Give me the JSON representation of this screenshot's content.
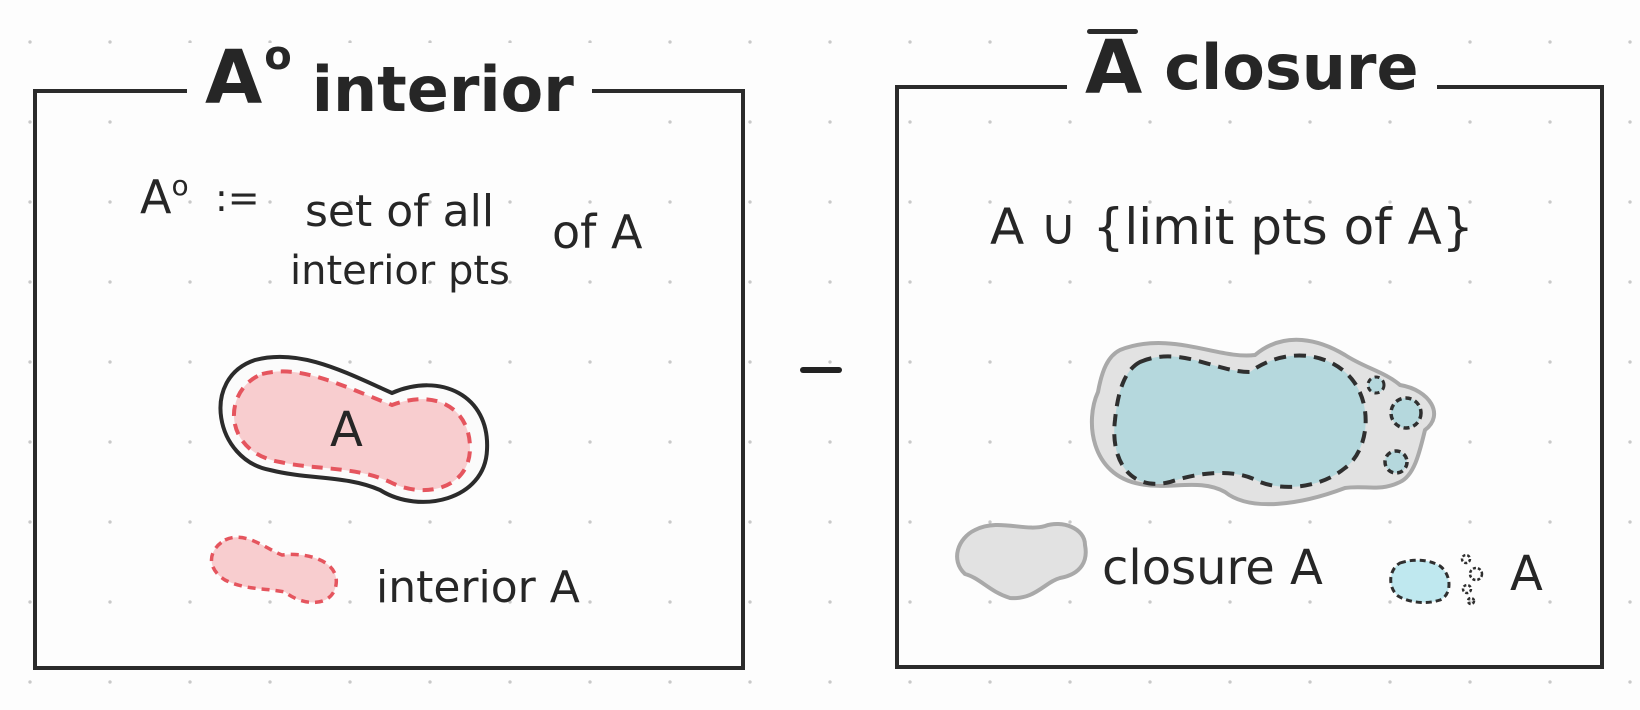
{
  "left_panel": {
    "symbol": "A",
    "symbol_sup": "o",
    "title": "interior",
    "definition_symbol": "A",
    "definition_sup": "o",
    "definition_op": ":=",
    "definition_line1": "set of all",
    "definition_line2": "interior pts",
    "definition_suffix": "of A",
    "shape_label": "A",
    "legend_label": "interior A",
    "colors": {
      "interior_fill": "#f8cdcf",
      "interior_stroke": "#e5555e",
      "outline": "#2b2b2b"
    }
  },
  "operator": "−",
  "right_panel": {
    "symbol": "A",
    "title": "closure",
    "definition": "A ∪ {limit pts of A}",
    "legend_closure_label": "closure A",
    "legend_set_label": "A",
    "colors": {
      "closure_fill": "#e2e2e2",
      "closure_stroke": "#a9a9a9",
      "set_fill": "#b5d8dd",
      "legend_set_fill": "#bfe8ef"
    }
  }
}
